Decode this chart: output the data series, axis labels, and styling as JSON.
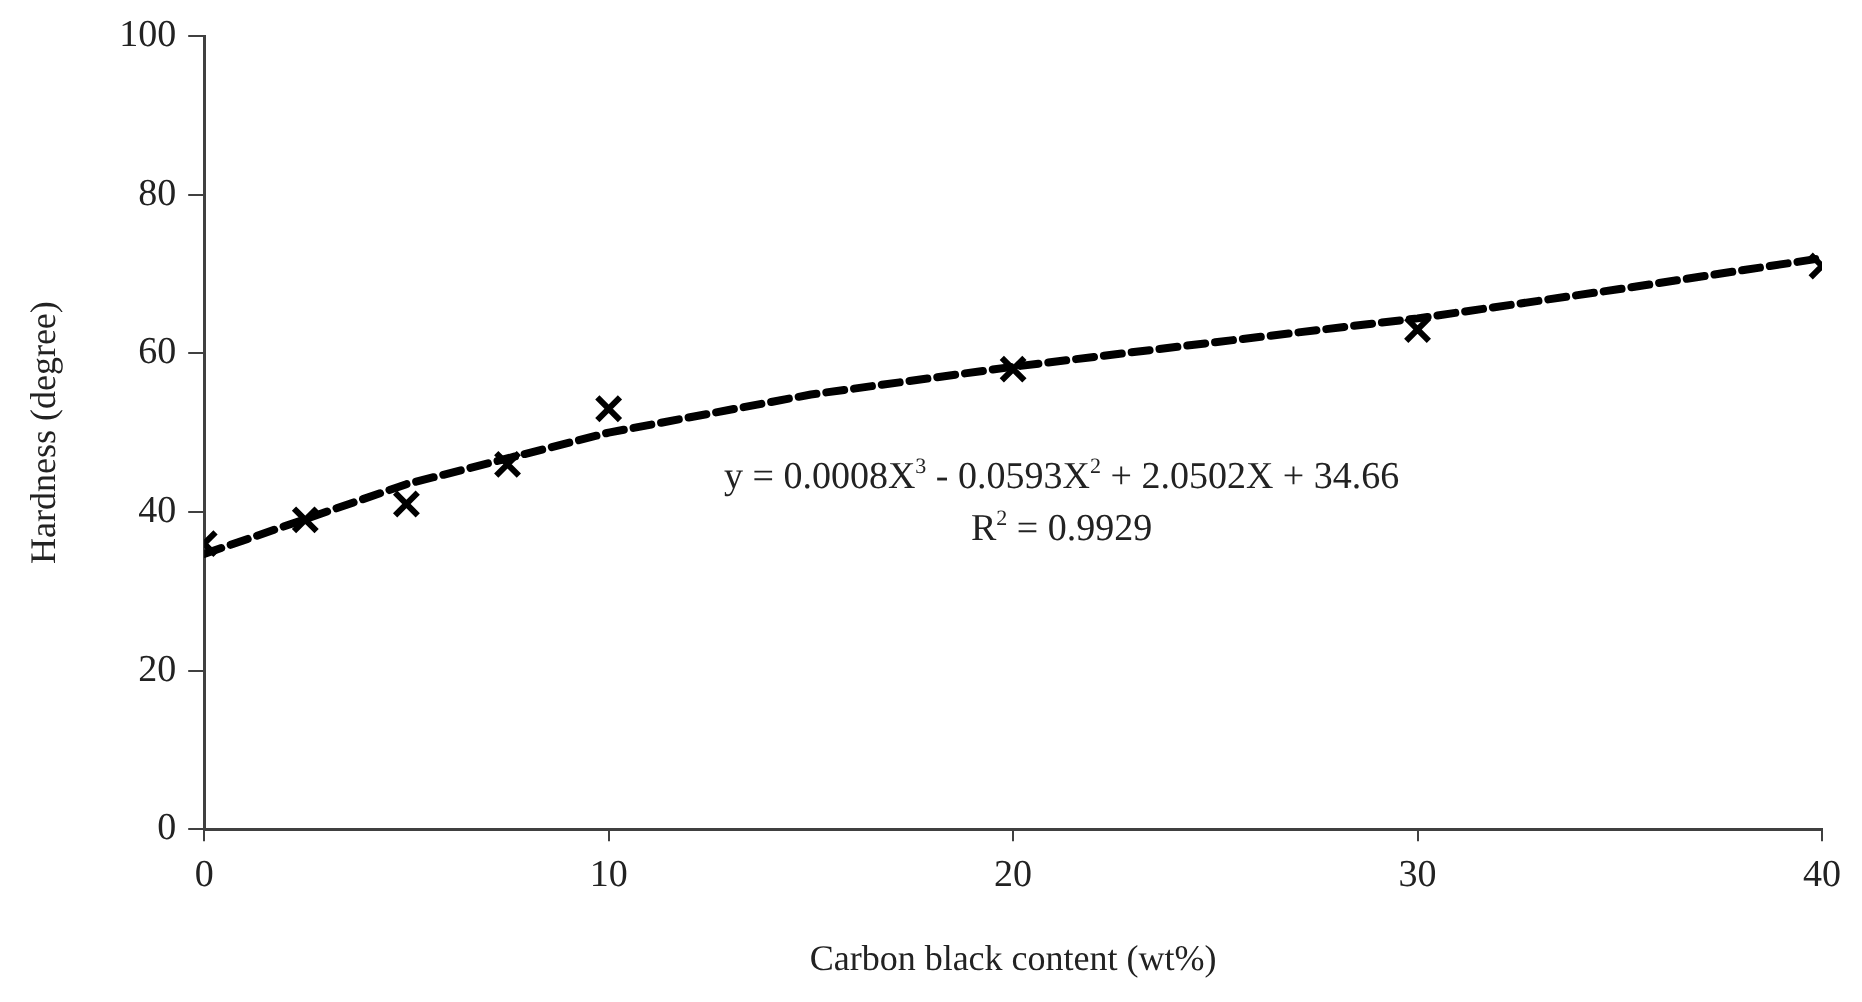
{
  "chart_data": {
    "type": "scatter",
    "xlabel": "Carbon black content (wt%)",
    "ylabel": "Hardness (degree)",
    "xlim": [
      0,
      40
    ],
    "xticks": [
      0,
      10,
      20,
      30,
      40
    ],
    "ylim": [
      0,
      100
    ],
    "yticks": [
      0,
      20,
      40,
      60,
      80,
      100
    ],
    "grid": false,
    "legend": false,
    "series": [
      {
        "color": "#000000",
        "marker": "cross",
        "x": [
          0,
          2.5,
          5,
          7.5,
          10,
          20,
          30,
          40
        ],
        "values": [
          36,
          39,
          41,
          46,
          53,
          58,
          63,
          71
        ]
      },
      {
        "type": "line",
        "color": "#000000",
        "line_style": "dashed",
        "marker": "none",
        "x": [
          0,
          5,
          10,
          15,
          20,
          25,
          30,
          35,
          40
        ],
        "values": [
          34.7,
          43.5,
          50,
          54.8,
          58.3,
          61.4,
          64.4,
          68.1,
          72
        ]
      }
    ],
    "annotations": [
      "y = 0.0008X$^{3}$ - 0.0593X$^{2}$ + 2.0502X + 34.66",
      "R$^{2}$ = 0.9929"
    ]
  }
}
